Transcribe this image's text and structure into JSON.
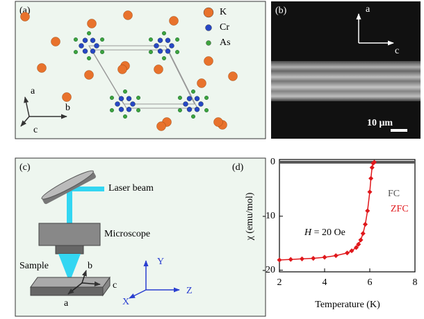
{
  "panels": {
    "a": {
      "label": "(a)",
      "legend": [
        {
          "name": "K",
          "color": "#e8722c"
        },
        {
          "name": "Cr",
          "color": "#2747c4"
        },
        {
          "name": "As",
          "color": "#3da33d"
        }
      ],
      "axes": [
        "a",
        "b",
        "c"
      ]
    },
    "b": {
      "label": "(b)",
      "axes": [
        "a",
        "c"
      ],
      "scale_bar": "10 μm"
    },
    "c": {
      "label": "(c)",
      "labels": [
        "Laser beam",
        "Microscope",
        "Sample"
      ],
      "crystal_axes": [
        "b",
        "c",
        "a"
      ],
      "lab_axes": [
        "Y",
        "Z",
        "X"
      ]
    }
  },
  "chart_data": {
    "type": "line",
    "panel_label": "(d)",
    "x_label": "Temperature (K)",
    "y_label": "χ (emu/mol)",
    "annotation_symbol": "H",
    "annotation_text": "= 20 Oe",
    "xlim": [
      2,
      8
    ],
    "ylim": [
      -20.3,
      0.5
    ],
    "xticks": [
      2,
      4,
      6,
      8
    ],
    "yticks": [
      0,
      -10,
      -20
    ],
    "series": [
      {
        "name": "FC",
        "color": "#555555",
        "x": [
          2,
          3,
          4,
          5,
          6,
          7,
          8
        ],
        "values": [
          0,
          0,
          0,
          0,
          0,
          0,
          0
        ]
      },
      {
        "name": "ZFC",
        "color": "#e0181c",
        "x": [
          2.0,
          2.5,
          3.0,
          3.5,
          4.0,
          4.5,
          5.0,
          5.2,
          5.4,
          5.5,
          5.6,
          5.7,
          5.8,
          5.9,
          6.0,
          6.05,
          6.1,
          6.15,
          6.2
        ],
        "values": [
          -18.1,
          -18.0,
          -17.9,
          -17.8,
          -17.6,
          -17.3,
          -16.8,
          -16.4,
          -15.8,
          -15.2,
          -14.4,
          -13.2,
          -11.5,
          -9.0,
          -5.5,
          -3.0,
          -1.0,
          -0.2,
          0
        ]
      }
    ]
  }
}
